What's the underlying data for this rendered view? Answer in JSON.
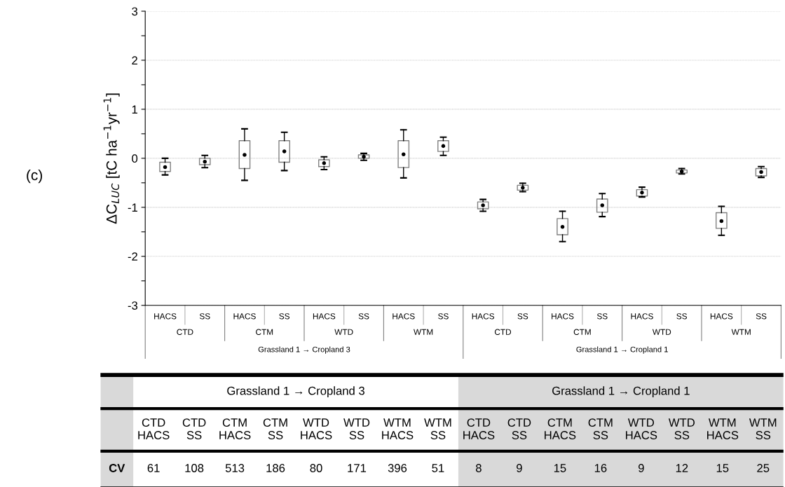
{
  "chart_data": [
    {
      "type": "box",
      "ylabel": "ΔC$_{LUC}$ [tC ha$^{−1}$yr$^{−1}$]",
      "categories": [
        "HACS",
        "SS",
        "HACS",
        "SS",
        "HACS",
        "SS",
        "HACS",
        "SS",
        "HACS",
        "SS",
        "HACS",
        "SS",
        "HACS",
        "SS",
        "HACS",
        "SS"
      ],
      "boxes": [
        {
          "low": -0.34,
          "q1": -0.27,
          "median": -0.18,
          "q3": -0.08,
          "high": 0.0
        },
        {
          "low": -0.19,
          "q1": -0.13,
          "median": -0.07,
          "q3": 0.0,
          "high": 0.06
        },
        {
          "low": -0.45,
          "q1": -0.21,
          "median": 0.07,
          "q3": 0.36,
          "high": 0.6
        },
        {
          "low": -0.25,
          "q1": -0.08,
          "median": 0.14,
          "q3": 0.36,
          "high": 0.53
        },
        {
          "low": -0.23,
          "q1": -0.17,
          "median": -0.1,
          "q3": -0.03,
          "high": 0.03
        },
        {
          "low": -0.04,
          "q1": 0.0,
          "median": 0.03,
          "q3": 0.07,
          "high": 0.1
        },
        {
          "low": -0.4,
          "q1": -0.19,
          "median": 0.08,
          "q3": 0.36,
          "high": 0.58
        },
        {
          "low": 0.06,
          "q1": 0.14,
          "median": 0.25,
          "q3": 0.36,
          "high": 0.43
        },
        {
          "low": -1.08,
          "q1": -1.03,
          "median": -0.96,
          "q3": -0.89,
          "high": -0.84
        },
        {
          "low": -0.68,
          "q1": -0.65,
          "median": -0.6,
          "q3": -0.55,
          "high": -0.51
        },
        {
          "low": -1.7,
          "q1": -1.56,
          "median": -1.4,
          "q3": -1.23,
          "high": -1.08
        },
        {
          "low": -1.19,
          "q1": -1.1,
          "median": -0.96,
          "q3": -0.83,
          "high": -0.72
        },
        {
          "low": -0.79,
          "q1": -0.77,
          "median": -0.7,
          "q3": -0.64,
          "high": -0.59
        },
        {
          "low": -0.32,
          "q1": -0.3,
          "median": -0.27,
          "q3": -0.24,
          "high": -0.21
        },
        {
          "low": -1.57,
          "q1": -1.43,
          "median": -1.28,
          "q3": -1.11,
          "high": -0.98
        },
        {
          "low": -0.39,
          "q1": -0.36,
          "median": -0.28,
          "q3": -0.21,
          "high": -0.17
        }
      ],
      "ylim": [
        -3,
        3
      ],
      "yticks": [
        -3,
        {
          "value": -2.5,
          "label": null
        },
        -2,
        {
          "value": -1.5,
          "label": null
        },
        -1,
        {
          "value": -0.5,
          "label": null
        },
        0,
        {
          "value": 0.5,
          "label": null
        },
        1,
        {
          "value": 1.5,
          "label": null
        },
        2,
        {
          "value": 2.5,
          "label": null
        },
        3
      ],
      "grid": "y",
      "annotations": [
        "CTD",
        "CTM",
        "WTD",
        "WTM",
        "CTD",
        "CTM",
        "WTD",
        "WTM",
        "Grassland 1 → Cropland 3",
        "Grassland 1 → Cropland 1",
        "(c)"
      ]
    },
    {
      "type": "other",
      "categories": [
        "CTD HACS",
        "CTD SS",
        "CTM HACS",
        "CTM SS",
        "WTD HACS",
        "WTD SS",
        "WTM HACS",
        "WTM SS",
        "CTD HACS",
        "CTD SS",
        "CTM HACS",
        "CTM SS",
        "WTD HACS",
        "WTD SS",
        "WTM HACS",
        "WTM SS"
      ],
      "values": [
        61,
        108,
        513,
        186,
        80,
        171,
        396,
        51,
        8,
        9,
        15,
        16,
        9,
        12,
        15,
        25
      ],
      "data_labels": true,
      "annotations": [
        "Grassland 1 → Cropland 3",
        "Grassland 1 → Cropland 1",
        "CV"
      ]
    }
  ]
}
